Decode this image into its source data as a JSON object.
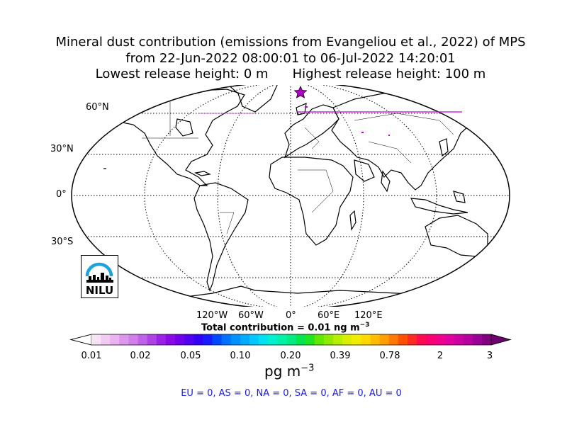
{
  "title": {
    "line1": "Mineral dust contribution (emissions from Evangeliou et al., 2022) of MPS",
    "line2": "from 22-Jun-2022 08:00:01 to 06-Jul-2022 14:20:01",
    "line3a": "Lowest release height: 0 m",
    "line3b": "Highest release height: 100 m"
  },
  "map": {
    "lat_labels": [
      "60°N",
      "30°N",
      "0°",
      "30°S"
    ],
    "lon_labels": [
      "120°W",
      "60°W",
      "0°",
      "60°E",
      "120°E"
    ],
    "release_marker_icon": "star-icon",
    "marker_color": "#b000c0"
  },
  "total_contribution": {
    "text": "Total contribution = 0.01 ng m",
    "exponent": "−3"
  },
  "colorbar": {
    "ticks": [
      "0.01",
      "0.02",
      "0.05",
      "0.10",
      "0.20",
      "0.39",
      "0.78",
      "2",
      "3"
    ],
    "unit": "pg m",
    "unit_exponent": "−3",
    "colors": [
      "#f6e3f6",
      "#f0ccf0",
      "#e8b3ee",
      "#dc99ec",
      "#cf7eea",
      "#c062e8",
      "#ad44e6",
      "#9a22e6",
      "#8a0ae6",
      "#6e00ea",
      "#5200f0",
      "#3300f6",
      "#1a1aff",
      "#0048ff",
      "#0070ff",
      "#0090ff",
      "#00aaff",
      "#00c8ff",
      "#00e0f0",
      "#00f0d0",
      "#00f0a8",
      "#00ec80",
      "#00e650",
      "#1ee61e",
      "#60e800",
      "#90ea00",
      "#b8ee00",
      "#d8f000",
      "#f0ee00",
      "#ffd800",
      "#ffbc00",
      "#ffa000",
      "#ff7a00",
      "#ff5000",
      "#ff2a20",
      "#ff0a50",
      "#f80070",
      "#f0008a",
      "#e0009c",
      "#cc00a0",
      "#b400a0",
      "#9a0094",
      "#820080"
    ],
    "under_color": "#ffffff",
    "over_color": "#6e0070"
  },
  "regions": "EU = 0,  AS = 0,  NA = 0,  SA = 0,  AF = 0,  AU = 0",
  "logo": {
    "text": "NILU",
    "icon": "nilu-logo-icon",
    "arc_color": "#1aa3e0"
  }
}
